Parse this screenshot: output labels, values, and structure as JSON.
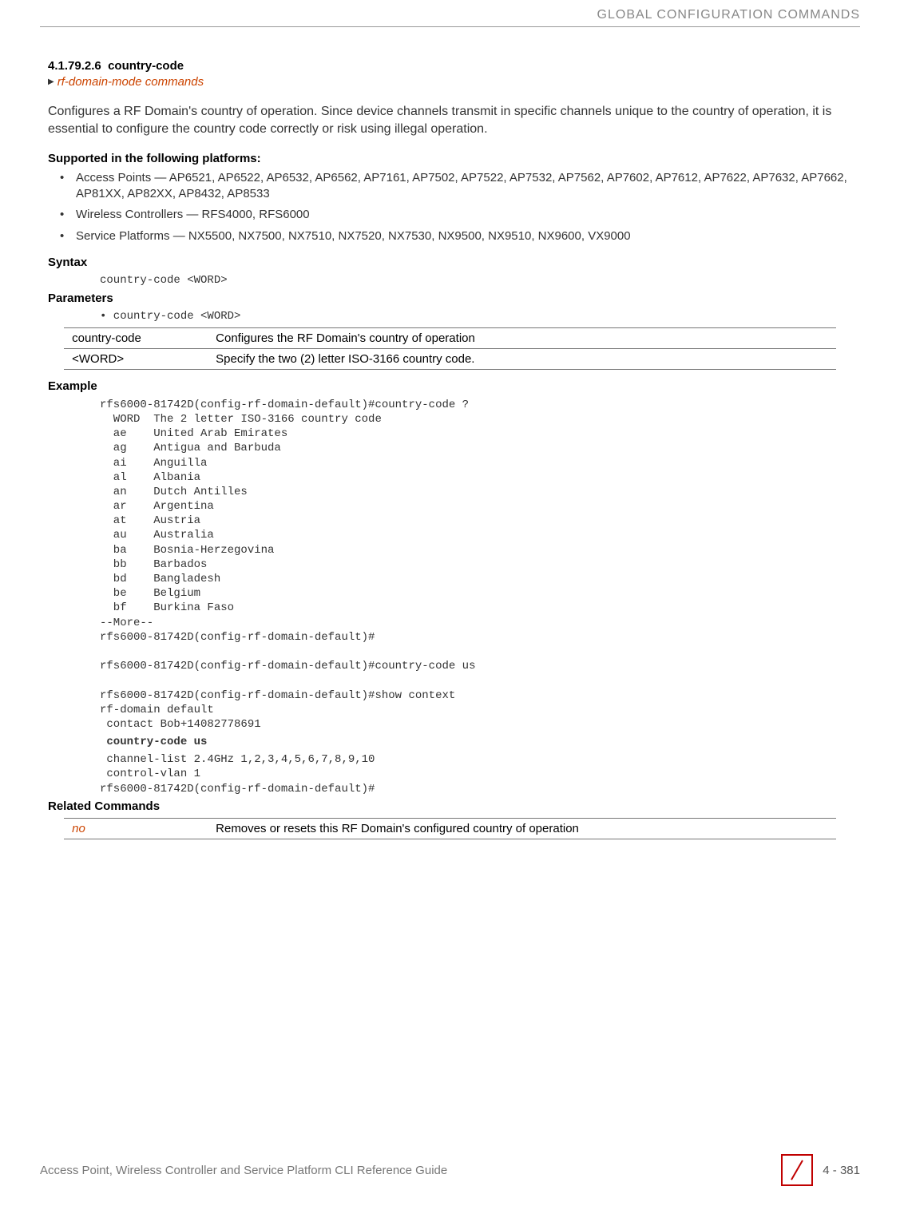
{
  "header": {
    "chapter_title": "GLOBAL CONFIGURATION COMMANDS"
  },
  "section": {
    "number": "4.1.79.2.6",
    "title": "country-code",
    "link": "rf-domain-mode commands"
  },
  "description": "Configures a RF Domain's country of operation. Since device channels transmit in specific channels unique to the country of operation, it is essential to configure the country code correctly or risk using illegal operation.",
  "platforms_heading": "Supported in the following platforms:",
  "platforms": [
    "Access Points — AP6521, AP6522, AP6532, AP6562, AP7161, AP7502, AP7522, AP7532, AP7562, AP7602, AP7612, AP7622, AP7632, AP7662, AP81XX, AP82XX, AP8432, AP8533",
    "Wireless Controllers — RFS4000, RFS6000",
    "Service Platforms — NX5500, NX7500, NX7510, NX7520, NX7530, NX9500, NX9510, NX9600, VX9000"
  ],
  "syntax_heading": "Syntax",
  "syntax_code": "country-code <WORD>",
  "parameters_heading": "Parameters",
  "parameters_bullet": "• country-code <WORD>",
  "params_table": {
    "rows": [
      {
        "key": "country-code",
        "value": "Configures the RF Domain's country of operation"
      },
      {
        "key": "<WORD>",
        "value": "Specify the two (2) letter ISO-3166 country code."
      }
    ]
  },
  "example_heading": "Example",
  "example_block1": "rfs6000-81742D(config-rf-domain-default)#country-code ?\n  WORD  The 2 letter ISO-3166 country code\n  ae    United Arab Emirates\n  ag    Antigua and Barbuda\n  ai    Anguilla\n  al    Albania\n  an    Dutch Antilles\n  ar    Argentina\n  at    Austria\n  au    Australia\n  ba    Bosnia-Herzegovina\n  bb    Barbados\n  bd    Bangladesh\n  be    Belgium\n  bf    Burkina Faso\n--More--\nrfs6000-81742D(config-rf-domain-default)#\n\nrfs6000-81742D(config-rf-domain-default)#country-code us\n\nrfs6000-81742D(config-rf-domain-default)#show context\nrf-domain default\n contact Bob+14082778691",
  "example_bold": " country-code us",
  "example_block2": " channel-list 2.4GHz 1,2,3,4,5,6,7,8,9,10\n control-vlan 1\nrfs6000-81742D(config-rf-domain-default)#",
  "related_heading": "Related Commands",
  "related_table": {
    "rows": [
      {
        "key": "no",
        "value": "Removes or resets this RF Domain's configured country of operation",
        "is_link": true
      }
    ]
  },
  "footer": {
    "guide_title": "Access Point, Wireless Controller and Service Platform CLI Reference Guide",
    "page_number": "4 - 381"
  },
  "colors": {
    "link_color": "#cc4400",
    "header_text": "#888888",
    "body_text": "#333333",
    "border_red": "#c00000"
  }
}
